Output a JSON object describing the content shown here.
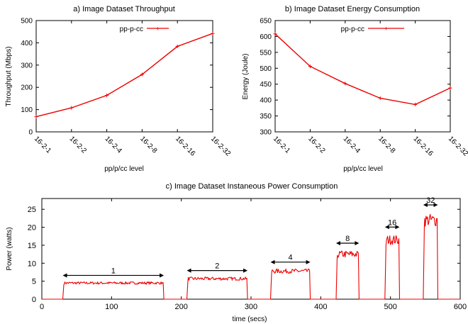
{
  "chart_data": [
    {
      "type": "line",
      "title": "a) Image Dataset Throughput",
      "xlabel": "pp/p/cc level",
      "ylabel": "Throughput (Mbps)",
      "categories": [
        "16-2-1",
        "16-2-2",
        "16-2-4",
        "16-2-8",
        "16-2-16",
        "16-2-32"
      ],
      "ylim": [
        0,
        500
      ],
      "yticks": [
        "0",
        "100",
        "200",
        "300",
        "400",
        "500"
      ],
      "legend_position": "top-right",
      "series": [
        {
          "name": "pp-p-cc",
          "color": "#ee0000",
          "values": [
            68,
            108,
            164,
            258,
            384,
            442
          ]
        }
      ]
    },
    {
      "type": "line",
      "title": "b) Image Dataset Energy Consumption",
      "xlabel": "pp/p/cc level",
      "ylabel": "Energy (Joule)",
      "categories": [
        "16-2-1",
        "16-2-2",
        "16-2-4",
        "16-2-8",
        "16-2-16",
        "16-2-32"
      ],
      "ylim": [
        300,
        650
      ],
      "yticks": [
        "300",
        "350",
        "400",
        "450",
        "500",
        "550",
        "600",
        "650"
      ],
      "legend_position": "top-right",
      "series": [
        {
          "name": "pp-p-cc",
          "color": "#ee0000",
          "values": [
            608,
            506,
            452,
            406,
            386,
            438
          ]
        }
      ]
    },
    {
      "type": "line",
      "title": "c) Image Dataset Instaneous Power Consumption",
      "xlabel": "time (secs)",
      "ylabel": "Power (watts)",
      "xlim": [
        0,
        600
      ],
      "ylim": [
        0,
        28
      ],
      "xticks": [
        "0",
        "100",
        "200",
        "300",
        "400",
        "500",
        "600"
      ],
      "yticks": [
        "0",
        "5",
        "10",
        "15",
        "20",
        "25"
      ],
      "series_color": "#ee0000",
      "segments": [
        {
          "label": "1",
          "start": 30,
          "end": 175,
          "level": 4.5
        },
        {
          "label": "2",
          "start": 208,
          "end": 295,
          "level": 5.7
        },
        {
          "label": "4",
          "start": 328,
          "end": 385,
          "level": 7.8
        },
        {
          "label": "8",
          "start": 422,
          "end": 455,
          "level": 12.5
        },
        {
          "label": "16",
          "start": 492,
          "end": 513,
          "level": 16.5
        },
        {
          "label": "32",
          "start": 547,
          "end": 568,
          "level": 22
        }
      ]
    }
  ]
}
